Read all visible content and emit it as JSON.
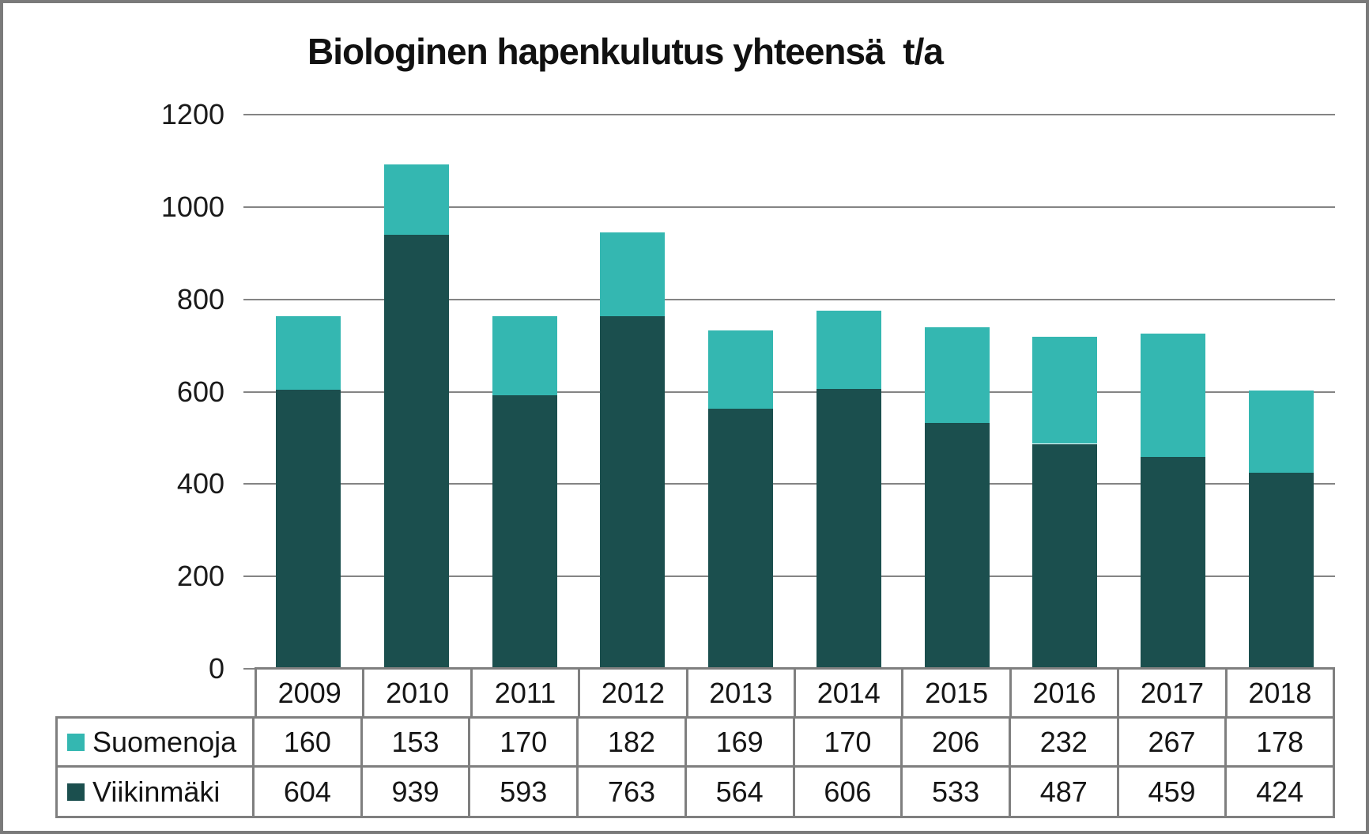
{
  "chart_data": {
    "type": "bar",
    "stacked": true,
    "title": "Biologinen hapenkulutus yhteensä  t/a",
    "categories": [
      "2009",
      "2010",
      "2011",
      "2012",
      "2013",
      "2014",
      "2015",
      "2016",
      "2017",
      "2018"
    ],
    "series": [
      {
        "name": "Suomenoja",
        "color": "#34b7b1",
        "values": [
          160,
          153,
          170,
          182,
          169,
          170,
          206,
          232,
          267,
          178
        ]
      },
      {
        "name": "Viikinmäki",
        "color": "#1b4f4e",
        "values": [
          604,
          939,
          593,
          763,
          564,
          606,
          533,
          487,
          459,
          424
        ]
      }
    ],
    "stack_order_bottom_to_top": [
      "Viikinmäki",
      "Suomenoja"
    ],
    "ylim": [
      0,
      1200
    ],
    "yticks": [
      0,
      200,
      400,
      600,
      800,
      1000,
      1200
    ],
    "grid": true,
    "gridline_color": "#848484",
    "table_border_color": "#7f7f7f",
    "legend_position": "table-left",
    "background_color": "#ffffff"
  }
}
